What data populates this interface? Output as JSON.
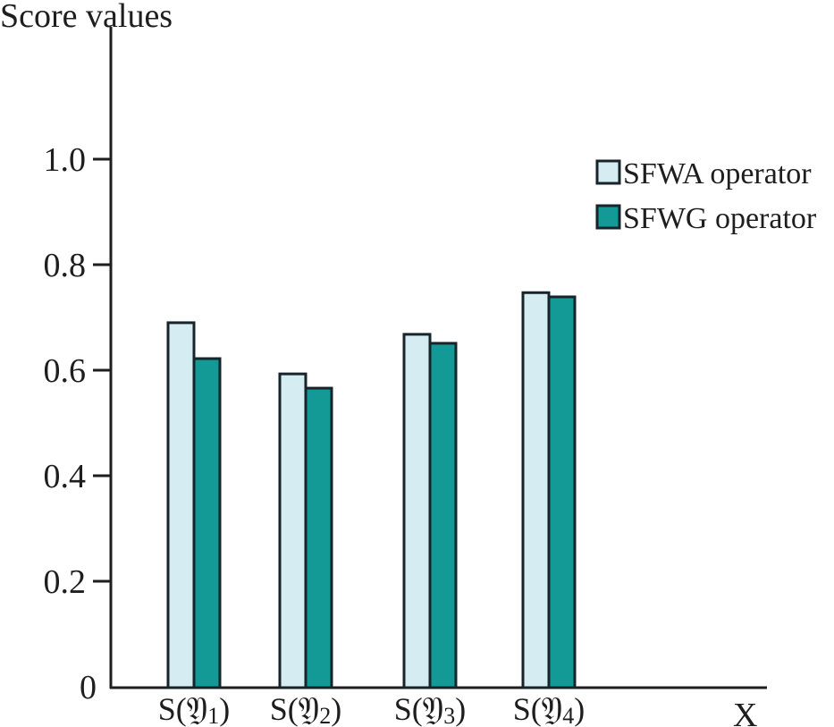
{
  "chart_data": {
    "type": "bar",
    "title": "",
    "ylabel": "Score values",
    "xlabel": "X",
    "ylim": [
      0,
      1.0
    ],
    "yticks": [
      0,
      0.2,
      0.4,
      0.6,
      0.8,
      1.0
    ],
    "ytick_labels": [
      "0",
      "0.2",
      "0.4",
      "0.6",
      "0.8",
      "1.0"
    ],
    "grid": false,
    "legend_position": "top-right",
    "categories": [
      "S(𝔜)₁",
      "S(𝔜)₂",
      "S(𝔜)₃",
      "S(𝔜)₄"
    ],
    "category_parts": [
      {
        "pre": "S(",
        "sym": "𝔜",
        "sub": "1",
        "post": ")"
      },
      {
        "pre": "S(",
        "sym": "𝔜",
        "sub": "2",
        "post": ")"
      },
      {
        "pre": "S(",
        "sym": "𝔜",
        "sub": "3",
        "post": ")"
      },
      {
        "pre": "S(",
        "sym": "𝔜",
        "sub": "4",
        "post": ")"
      }
    ],
    "series": [
      {
        "name": "SFWA operator",
        "color": "#d5ecf3",
        "values": [
          0.69,
          0.593,
          0.668,
          0.747
        ]
      },
      {
        "name": "SFWG operator",
        "color": "#139996",
        "values": [
          0.622,
          0.566,
          0.651,
          0.739
        ]
      }
    ]
  }
}
